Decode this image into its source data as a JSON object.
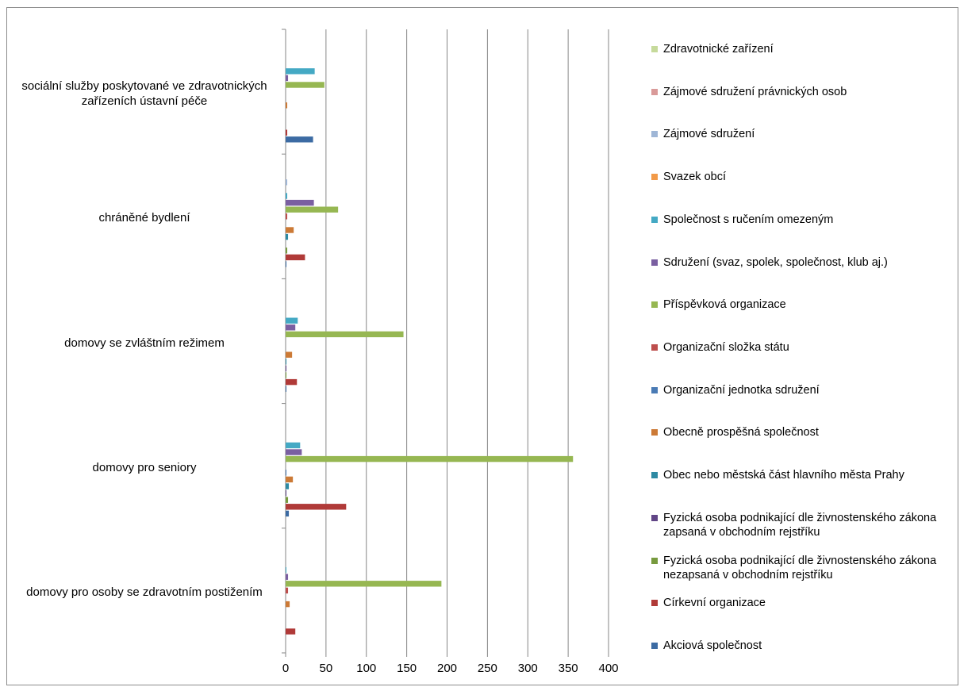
{
  "chart_data": {
    "type": "bar",
    "orientation": "horizontal",
    "categories": [
      "domovy pro osoby se zdravotním postižením",
      "domovy pro seniory",
      "domovy se zvláštním režimem",
      "chráněné bydlení",
      "sociální služby poskytované ve zdravotnických zařízeních ústavní péče"
    ],
    "xlim": [
      0,
      400
    ],
    "xticks": [
      "0",
      "50",
      "100",
      "150",
      "200",
      "250",
      "300",
      "350",
      "400"
    ],
    "grid": true,
    "legend_position": "right",
    "series": [
      {
        "name": "Akciová společnost",
        "color": "#3c6ba3",
        "values": [
          0,
          4,
          1,
          1,
          34
        ]
      },
      {
        "name": "Církevní organizace",
        "color": "#b03a38",
        "values": [
          12,
          75,
          14,
          24,
          2
        ]
      },
      {
        "name": "Fyzická osoba podnikající dle živnostenského zákona nezapsaná v obchodním rejstříku",
        "color": "#779a3e",
        "values": [
          0,
          3,
          1,
          2,
          0
        ]
      },
      {
        "name": "Fyzická osoba podnikající dle živnostenského zákona zapsaná v obchodním rejstříku",
        "color": "#614586",
        "values": [
          0,
          1,
          1,
          0,
          0
        ]
      },
      {
        "name": "Obec nebo městská část hlavního města Prahy",
        "color": "#2e8aa3",
        "values": [
          0,
          4,
          1,
          3,
          0
        ]
      },
      {
        "name": "Obecně prospěšná společnost",
        "color": "#cc7a36",
        "values": [
          5,
          9,
          8,
          10,
          2
        ]
      },
      {
        "name": "Organizační jednotka sdružení",
        "color": "#4a7bb5",
        "values": [
          0,
          1,
          0,
          0,
          0
        ]
      },
      {
        "name": "Organizační složka státu",
        "color": "#bd4e4c",
        "values": [
          3,
          0,
          0,
          2,
          0
        ]
      },
      {
        "name": "Příspěvková organizace",
        "color": "#96b752",
        "values": [
          193,
          356,
          146,
          65,
          48
        ]
      },
      {
        "name": "Sdružení (svaz, spolek, společnost, klub aj.)",
        "color": "#7a5fa1",
        "values": [
          3,
          20,
          12,
          35,
          3
        ]
      },
      {
        "name": "Společnost s ručením omezeným",
        "color": "#44a9c4",
        "values": [
          1,
          18,
          15,
          2,
          36
        ]
      },
      {
        "name": "Svazek obcí",
        "color": "#f29a48",
        "values": [
          0,
          0,
          0,
          0,
          0
        ]
      },
      {
        "name": "Zájmové sdružení",
        "color": "#9fb6d6",
        "values": [
          0,
          0,
          0,
          2,
          0
        ]
      },
      {
        "name": "Zájmové sdružení právnických osob",
        "color": "#d99a99",
        "values": [
          0,
          0,
          0,
          0,
          0
        ]
      },
      {
        "name": "Zdravotnické zařízení",
        "color": "#c6da9b",
        "values": [
          0,
          0,
          0,
          0,
          0
        ]
      }
    ]
  }
}
